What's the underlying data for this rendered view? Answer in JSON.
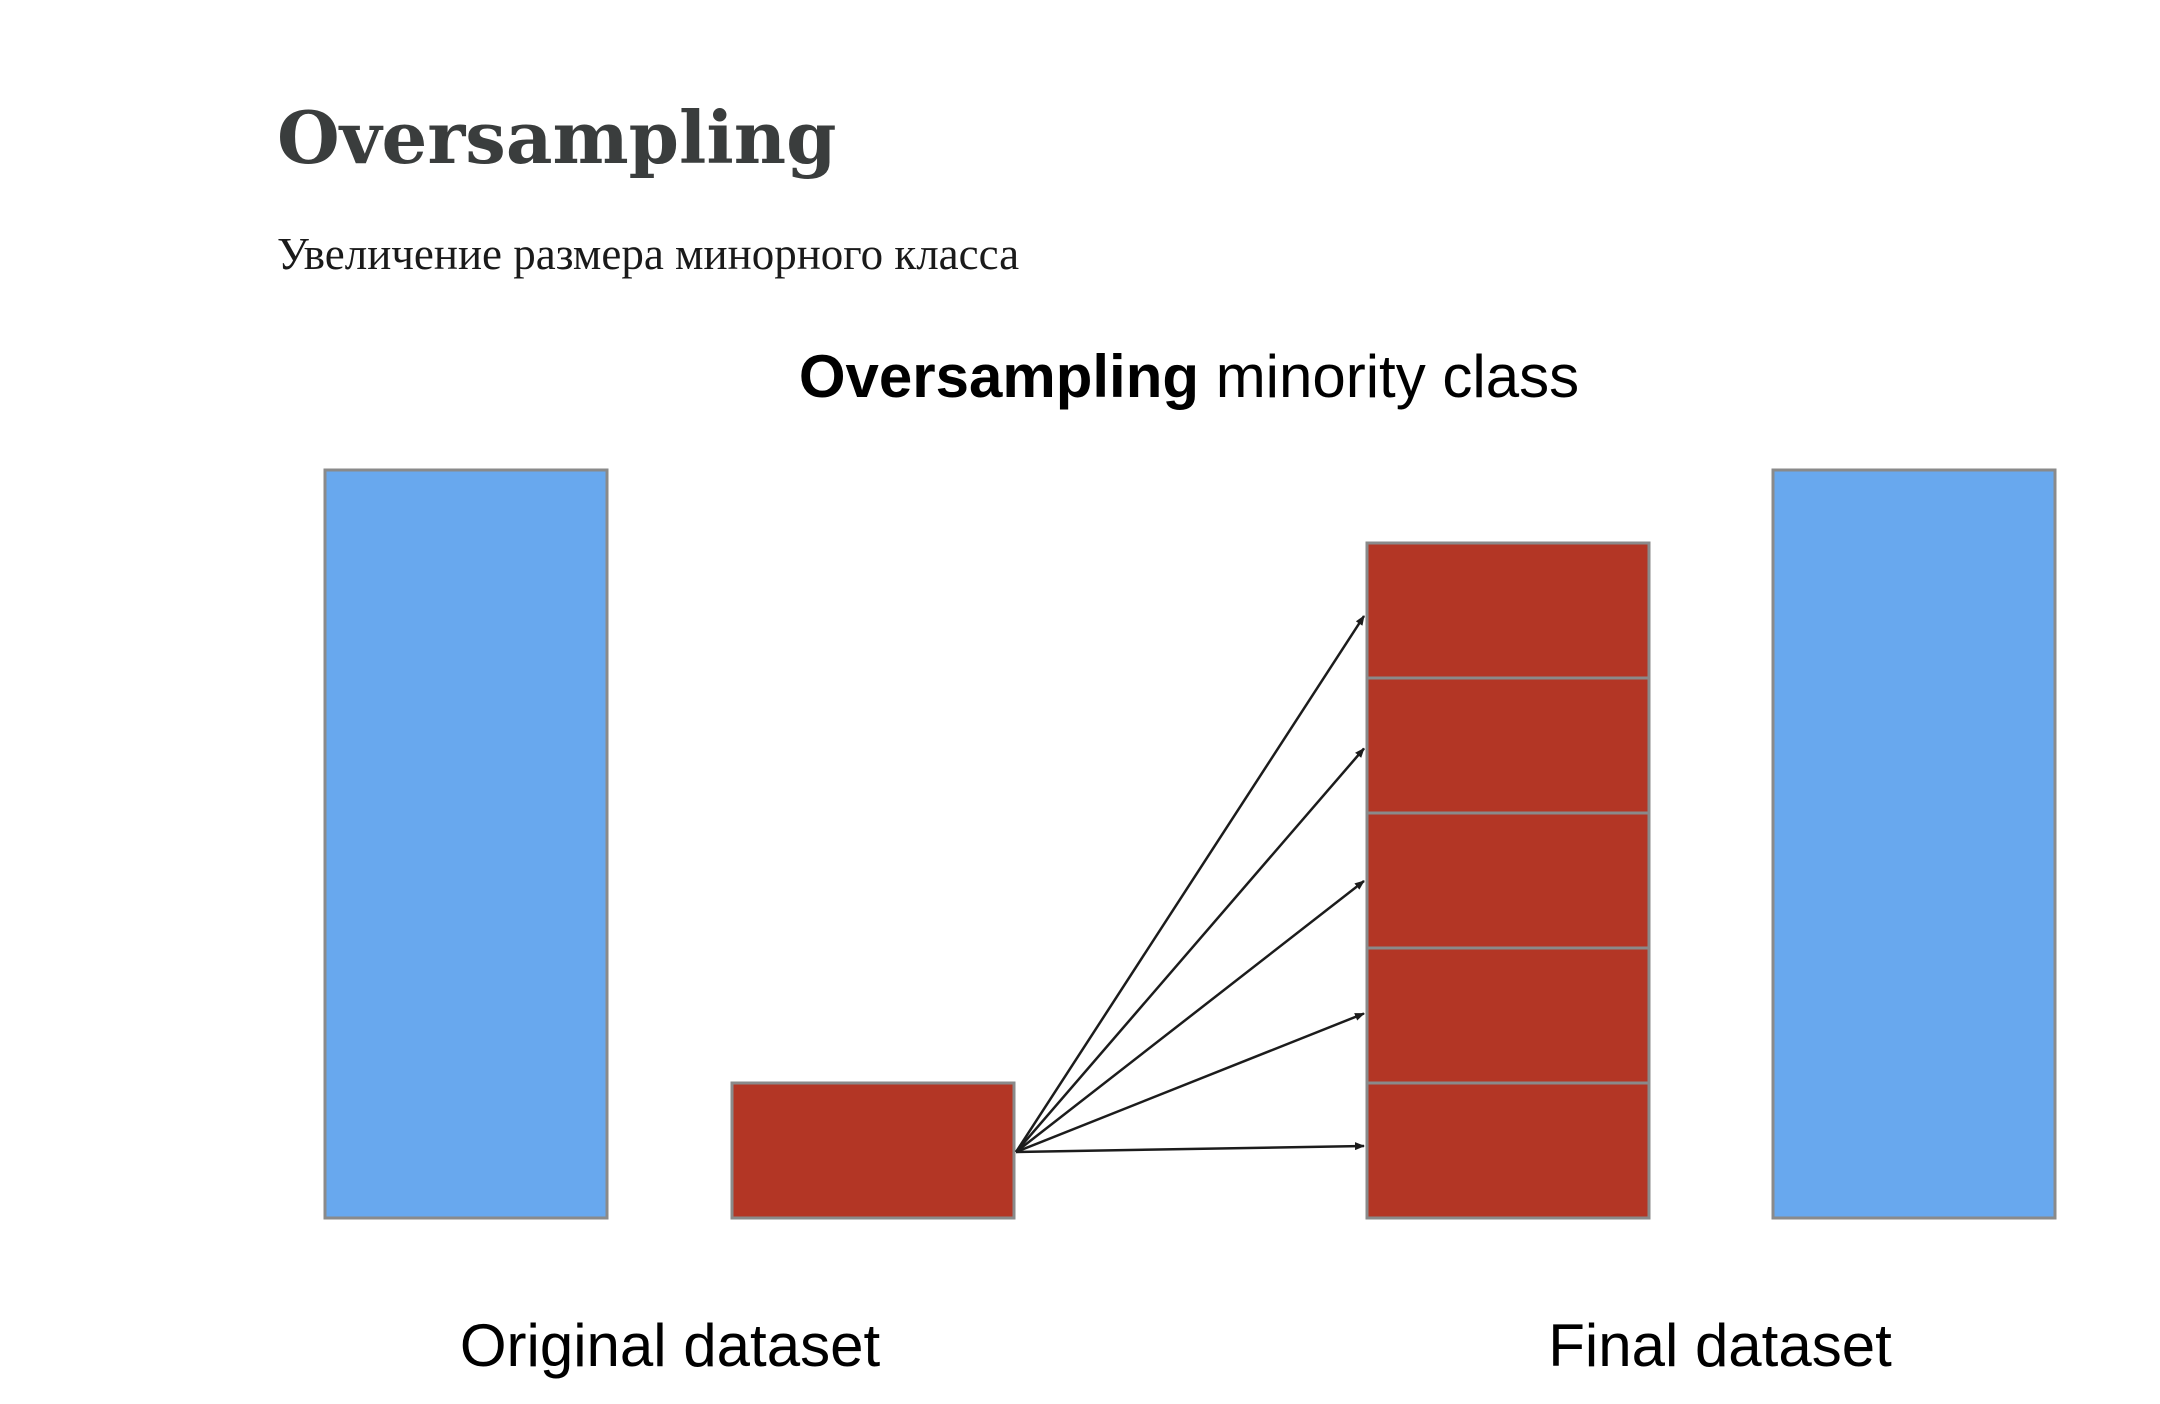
{
  "page": {
    "title": "Oversampling",
    "subtitle": "Увеличение размера минорного класса"
  },
  "figure": {
    "title_bold": "Oversampling",
    "title_rest": " minority class",
    "labels": {
      "original": "Original dataset",
      "final": "Final dataset"
    },
    "colors": {
      "majority": "#68a8ee",
      "minority": "#b33625",
      "block_border": "#8a8a8a",
      "arrow": "#1c1c1c"
    },
    "original_dataset": {
      "majority_blocks": 1,
      "minority_blocks": 1
    },
    "final_dataset": {
      "majority_blocks": 1,
      "minority_blocks": 5
    },
    "arrow_count": 5
  }
}
